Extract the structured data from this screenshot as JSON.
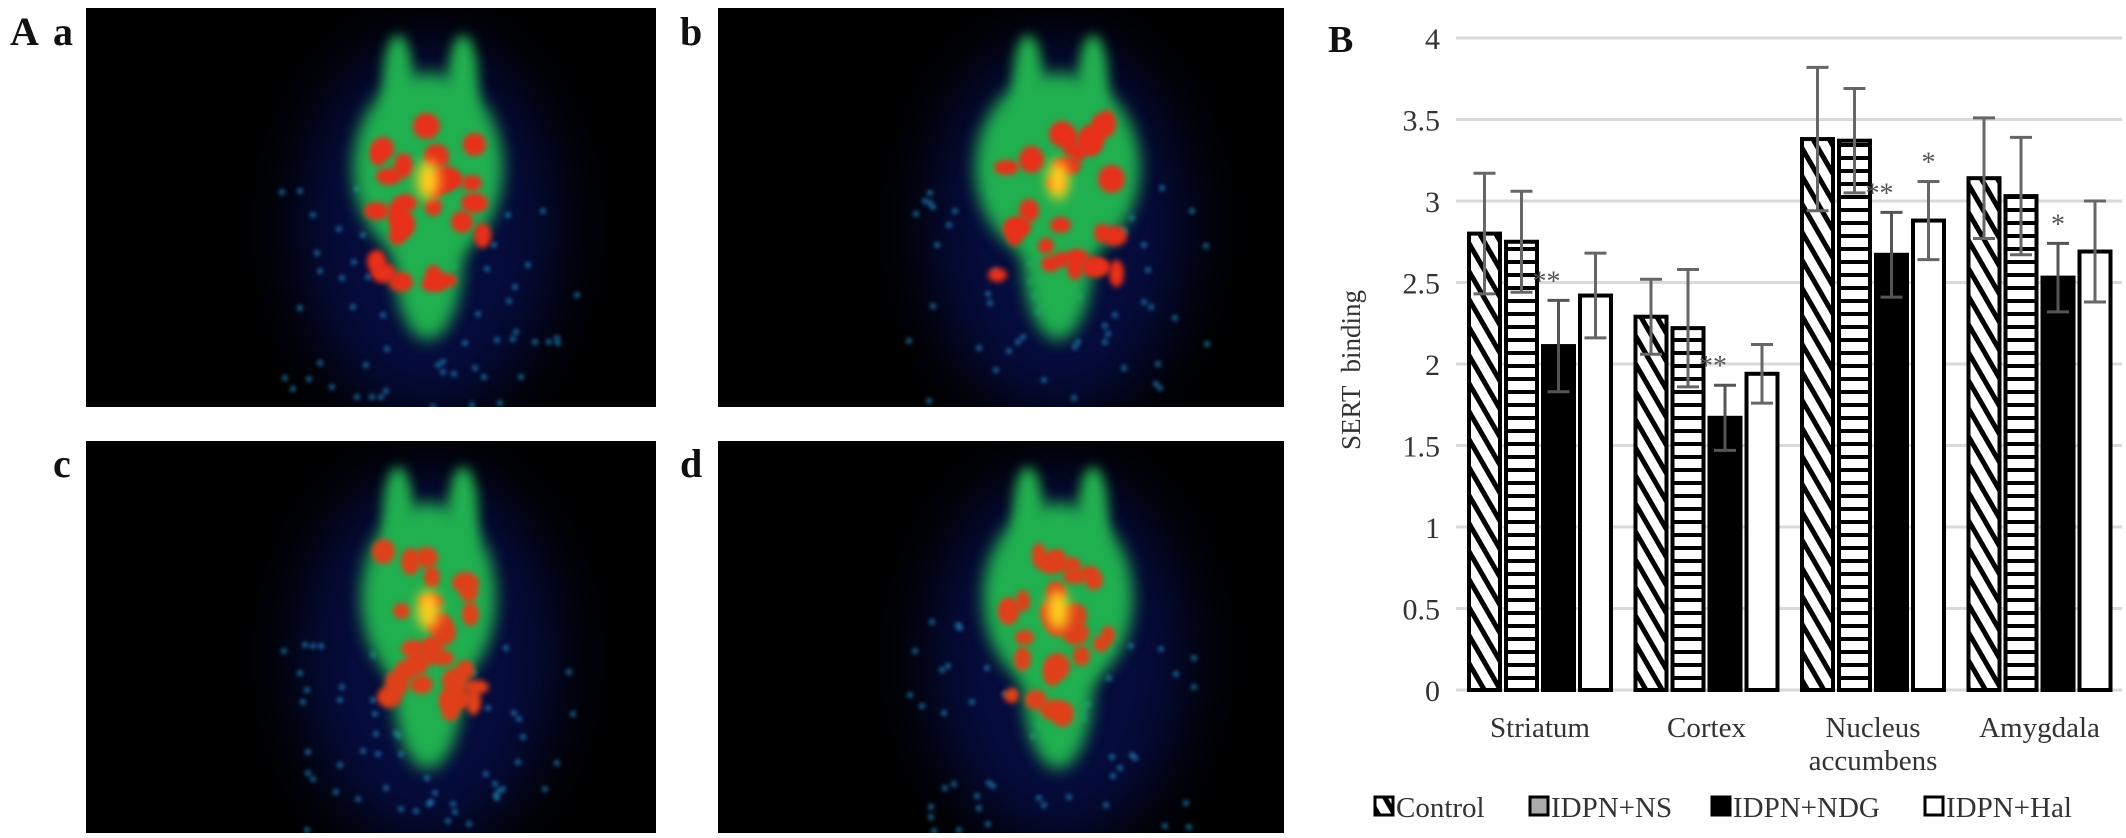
{
  "panel_a": {
    "label": "A",
    "images": [
      {
        "label": "a"
      },
      {
        "label": "b"
      },
      {
        "label": "c"
      },
      {
        "label": "d"
      }
    ]
  },
  "panel_b": {
    "label": "B"
  },
  "chart_data": {
    "type": "bar",
    "title": "",
    "xlabel": "",
    "ylabel": "SERT  binding",
    "ylim": [
      0,
      4
    ],
    "yticks": [
      "0",
      "0.5",
      "1",
      "1.5",
      "2",
      "2.5",
      "3",
      "3.5",
      "4"
    ],
    "grid": true,
    "legend_position": "bottom",
    "categories": [
      "Striatum",
      "Cortex",
      "Nucleus accumbens",
      "Amygdala"
    ],
    "category_lines": [
      [
        "Striatum"
      ],
      [
        "Cortex"
      ],
      [
        "Nucleus",
        "accumbens"
      ],
      [
        "Amygdala"
      ]
    ],
    "series": [
      {
        "name": "Control",
        "pattern": "diagonal",
        "values": [
          2.8,
          2.29,
          3.38,
          3.14
        ],
        "errors": [
          0.37,
          0.23,
          0.44,
          0.37
        ],
        "annotations": [
          "",
          "",
          "",
          ""
        ]
      },
      {
        "name": "IDPN+NS",
        "pattern": "horizontal",
        "values": [
          2.75,
          2.22,
          3.37,
          3.03
        ],
        "errors": [
          0.31,
          0.36,
          0.32,
          0.36
        ],
        "annotations": [
          "",
          "",
          "",
          ""
        ]
      },
      {
        "name": "IDPN+NDG",
        "pattern": "solid",
        "values": [
          2.11,
          1.67,
          2.67,
          2.53
        ],
        "errors": [
          0.28,
          0.2,
          0.26,
          0.21
        ],
        "annotations": [
          "**",
          "**",
          "**",
          "*"
        ]
      },
      {
        "name": "IDPN+Hal",
        "pattern": "empty",
        "values": [
          2.42,
          1.94,
          2.88,
          2.69
        ],
        "errors": [
          0.26,
          0.18,
          0.24,
          0.31
        ],
        "annotations": [
          "",
          "",
          "*",
          ""
        ]
      }
    ],
    "colors": {
      "bar_stroke": "#000000",
      "grid": "#d9d9d9",
      "solid": "#000000",
      "empty": "#ffffff"
    }
  }
}
